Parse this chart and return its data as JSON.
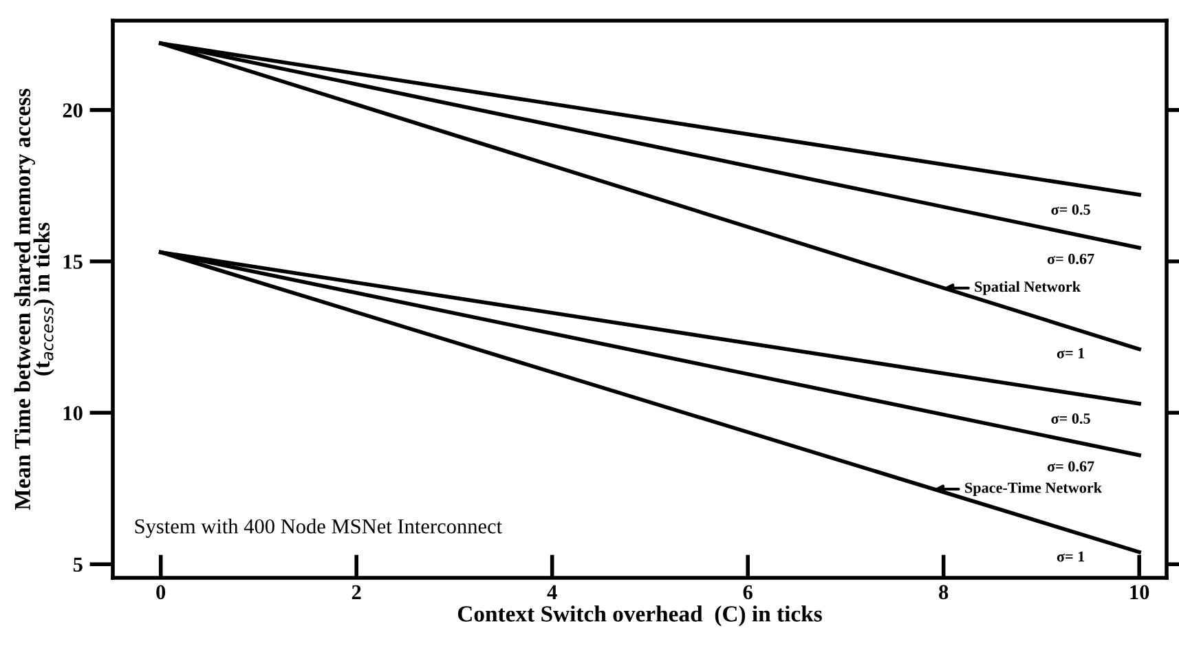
{
  "chart_data": {
    "type": "line",
    "xlabel": "Context Switch overhead  (C) in ticks",
    "ylabel": "Mean Time between shared memory access\n(t$_{access}$) in ticks",
    "xlim": [
      -0.49,
      10.28
    ],
    "ylim": [
      4.55,
      22.95
    ],
    "xticks": [
      0,
      2,
      4,
      6,
      8,
      10
    ],
    "yticks": [
      5,
      10,
      15,
      20
    ],
    "grid": false,
    "legend": false,
    "marker": "none",
    "line_style": "solid",
    "x": [
      0,
      10
    ],
    "series": [
      {
        "name": "σ= 0.5",
        "color": "#000000",
        "values": [
          22.2,
          17.2
        ]
      },
      {
        "name": "σ= 0.67",
        "color": "#000000",
        "values": [
          22.2,
          15.45
        ]
      },
      {
        "name": "σ= 1",
        "color": "#000000",
        "values": [
          22.2,
          12.1
        ]
      },
      {
        "name": "σ= 0.5",
        "color": "#000000",
        "values": [
          15.3,
          10.3
        ]
      },
      {
        "name": "σ= 0.67",
        "color": "#000000",
        "values": [
          15.3,
          8.6
        ]
      },
      {
        "name": "σ= 1",
        "color": "#000000",
        "values": [
          15.3,
          5.4
        ]
      }
    ],
    "annotations": [
      {
        "text": "Spatial Network",
        "x": 8.0,
        "y": 14.12
      },
      {
        "text": "Space-Time Network",
        "x": 7.9,
        "y": 7.48
      },
      "System with 400 Node MSNet Interconnect"
    ]
  }
}
